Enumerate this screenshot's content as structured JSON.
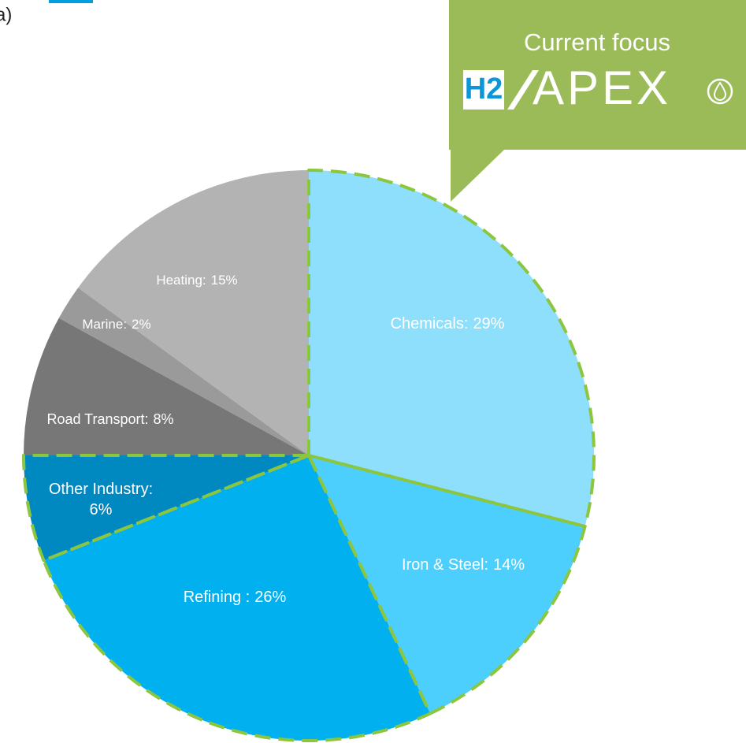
{
  "panel_label": "a)",
  "callout": {
    "title": "Current focus",
    "logo_h2": "H2",
    "logo_text": "APEX",
    "color": "#9bbb59"
  },
  "chart_data": {
    "type": "pie",
    "categories": [
      "Chemicals:",
      "Iron & Steel:",
      "Refining :",
      "Other Industry:",
      "Road Transport:",
      "Marine:",
      "Heating:"
    ],
    "values": [
      29,
      14,
      26,
      6,
      8,
      2,
      15
    ],
    "value_labels": [
      "29%",
      "14%",
      "26%",
      "6%",
      "8%",
      "2%",
      "15%"
    ],
    "colors": [
      "#8ddffb",
      "#4ccffc",
      "#00b0ef",
      "#0088c0",
      "#777777",
      "#9a9a9a",
      "#b3b3b3"
    ],
    "highlighted": [
      true,
      true,
      true,
      true,
      false,
      false,
      false
    ],
    "highlight_color": "#8cc63f"
  }
}
